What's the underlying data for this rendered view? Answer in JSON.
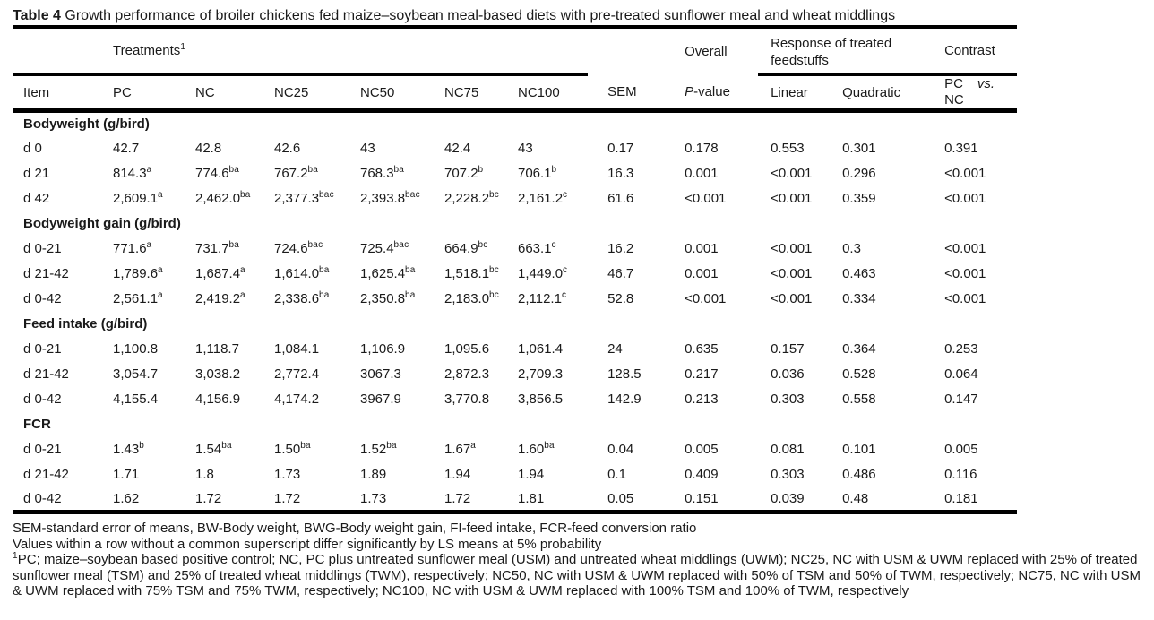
{
  "title": {
    "prefix": "Table 4",
    "text": " Growth performance of broiler chickens fed maize–soybean meal-based diets with pre-treated sunflower meal and wheat middlings"
  },
  "header": {
    "treatments_label": "Treatments",
    "treatments_sup": "1",
    "overall_label": "Overall",
    "response_label": "Response of treated feedstuffs",
    "contrast_label": "Contrast",
    "item": "Item",
    "treatments": [
      "PC",
      "NC",
      "NC25",
      "NC50",
      "NC75",
      "NC100"
    ],
    "sem": "SEM",
    "p_italic": "P",
    "p_rest": "-value",
    "linear": "Linear",
    "quadratic": "Quadratic",
    "contrast_pc": "PC",
    "contrast_vs": "vs.",
    "contrast_nc": "NC"
  },
  "sections": [
    {
      "label": "Bodyweight (g/bird)",
      "rows": [
        {
          "item": "d 0",
          "values": [
            {
              "v": "42.7",
              "sup": ""
            },
            {
              "v": "42.8",
              "sup": ""
            },
            {
              "v": "42.6",
              "sup": ""
            },
            {
              "v": "43",
              "sup": ""
            },
            {
              "v": "42.4",
              "sup": ""
            },
            {
              "v": "43",
              "sup": ""
            }
          ],
          "sem": "0.17",
          "p": "0.178",
          "linear": "0.553",
          "quadratic": "0.301",
          "contrast": "0.391"
        },
        {
          "item": "d 21",
          "values": [
            {
              "v": "814.3",
              "sup": "a"
            },
            {
              "v": "774.6",
              "sup": "ba"
            },
            {
              "v": "767.2",
              "sup": "ba"
            },
            {
              "v": "768.3",
              "sup": "ba"
            },
            {
              "v": "707.2",
              "sup": "b"
            },
            {
              "v": "706.1",
              "sup": "b"
            }
          ],
          "sem": "16.3",
          "p": "0.001",
          "linear": "<0.001",
          "quadratic": "0.296",
          "contrast": "<0.001"
        },
        {
          "item": "d 42",
          "values": [
            {
              "v": "2,609.1",
              "sup": "a"
            },
            {
              "v": "2,462.0",
              "sup": "ba"
            },
            {
              "v": "2,377.3",
              "sup": "bac"
            },
            {
              "v": "2,393.8",
              "sup": "bac"
            },
            {
              "v": "2,228.2",
              "sup": "bc"
            },
            {
              "v": "2,161.2",
              "sup": "c"
            }
          ],
          "sem": "61.6",
          "p": "<0.001",
          "linear": "<0.001",
          "quadratic": "0.359",
          "contrast": "<0.001"
        }
      ]
    },
    {
      "label": "Bodyweight gain (g/bird)",
      "rows": [
        {
          "item": "d 0-21",
          "values": [
            {
              "v": "771.6",
              "sup": "a"
            },
            {
              "v": "731.7",
              "sup": "ba"
            },
            {
              "v": "724.6",
              "sup": "bac"
            },
            {
              "v": "725.4",
              "sup": "bac"
            },
            {
              "v": "664.9",
              "sup": "bc"
            },
            {
              "v": "663.1",
              "sup": "c"
            }
          ],
          "sem": "16.2",
          "p": "0.001",
          "linear": "<0.001",
          "quadratic": "0.3",
          "contrast": "<0.001"
        },
        {
          "item": "d 21-42",
          "values": [
            {
              "v": "1,789.6",
              "sup": "a"
            },
            {
              "v": "1,687.4",
              "sup": "a"
            },
            {
              "v": "1,614.0",
              "sup": "ba"
            },
            {
              "v": "1,625.4",
              "sup": "ba"
            },
            {
              "v": "1,518.1",
              "sup": "bc"
            },
            {
              "v": "1,449.0",
              "sup": "c"
            }
          ],
          "sem": "46.7",
          "p": "0.001",
          "linear": "<0.001",
          "quadratic": "0.463",
          "contrast": "<0.001"
        },
        {
          "item": "d 0-42",
          "values": [
            {
              "v": "2,561.1",
              "sup": "a"
            },
            {
              "v": "2,419.2",
              "sup": "a"
            },
            {
              "v": "2,338.6",
              "sup": "ba"
            },
            {
              "v": "2,350.8",
              "sup": "ba"
            },
            {
              "v": "2,183.0",
              "sup": "bc"
            },
            {
              "v": "2,112.1",
              "sup": "c"
            }
          ],
          "sem": "52.8",
          "p": "<0.001",
          "linear": "<0.001",
          "quadratic": "0.334",
          "contrast": "<0.001"
        }
      ]
    },
    {
      "label": "Feed intake (g/bird)",
      "rows": [
        {
          "item": "d 0-21",
          "values": [
            {
              "v": "1,100.8",
              "sup": ""
            },
            {
              "v": "1,118.7",
              "sup": ""
            },
            {
              "v": "1,084.1",
              "sup": ""
            },
            {
              "v": "1,106.9",
              "sup": ""
            },
            {
              "v": "1,095.6",
              "sup": ""
            },
            {
              "v": "1,061.4",
              "sup": ""
            }
          ],
          "sem": "24",
          "p": "0.635",
          "linear": "0.157",
          "quadratic": "0.364",
          "contrast": "0.253"
        },
        {
          "item": "d 21-42",
          "values": [
            {
              "v": "3,054.7",
              "sup": ""
            },
            {
              "v": "3,038.2",
              "sup": ""
            },
            {
              "v": "2,772.4",
              "sup": ""
            },
            {
              "v": "3067.3",
              "sup": ""
            },
            {
              "v": "2,872.3",
              "sup": ""
            },
            {
              "v": "2,709.3",
              "sup": ""
            }
          ],
          "sem": "128.5",
          "p": "0.217",
          "linear": "0.036",
          "quadratic": "0.528",
          "contrast": "0.064"
        },
        {
          "item": "d 0-42",
          "values": [
            {
              "v": "4,155.4",
              "sup": ""
            },
            {
              "v": "4,156.9",
              "sup": ""
            },
            {
              "v": "4,174.2",
              "sup": ""
            },
            {
              "v": "3967.9",
              "sup": ""
            },
            {
              "v": "3,770.8",
              "sup": ""
            },
            {
              "v": "3,856.5",
              "sup": ""
            }
          ],
          "sem": "142.9",
          "p": "0.213",
          "linear": "0.303",
          "quadratic": "0.558",
          "contrast": "0.147"
        }
      ]
    },
    {
      "label": "FCR",
      "rows": [
        {
          "item": "d 0-21",
          "values": [
            {
              "v": "1.43",
              "sup": "b"
            },
            {
              "v": "1.54",
              "sup": "ba"
            },
            {
              "v": "1.50",
              "sup": "ba"
            },
            {
              "v": "1.52",
              "sup": "ba"
            },
            {
              "v": "1.67",
              "sup": "a"
            },
            {
              "v": "1.60",
              "sup": "ba"
            }
          ],
          "sem": "0.04",
          "p": "0.005",
          "linear": "0.081",
          "quadratic": "0.101",
          "contrast": "0.005"
        },
        {
          "item": "d 21-42",
          "values": [
            {
              "v": "1.71",
              "sup": ""
            },
            {
              "v": "1.8",
              "sup": ""
            },
            {
              "v": "1.73",
              "sup": ""
            },
            {
              "v": "1.89",
              "sup": ""
            },
            {
              "v": "1.94",
              "sup": ""
            },
            {
              "v": "1.94",
              "sup": ""
            }
          ],
          "sem": "0.1",
          "p": "0.409",
          "linear": "0.303",
          "quadratic": "0.486",
          "contrast": "0.116"
        },
        {
          "item": "d 0-42",
          "values": [
            {
              "v": "1.62",
              "sup": ""
            },
            {
              "v": "1.72",
              "sup": ""
            },
            {
              "v": "1.72",
              "sup": ""
            },
            {
              "v": "1.73",
              "sup": ""
            },
            {
              "v": "1.72",
              "sup": ""
            },
            {
              "v": "1.81",
              "sup": ""
            }
          ],
          "sem": "0.05",
          "p": "0.151",
          "linear": "0.039",
          "quadratic": "0.48",
          "contrast": "0.181"
        }
      ]
    }
  ],
  "footnotes": {
    "line1": "SEM-standard error of means, BW-Body weight, BWG-Body weight gain, FI-feed intake, FCR-feed conversion ratio",
    "line2": "Values within a row without a common superscript differ significantly by LS means at 5% probability",
    "line3_sup": "1",
    "line3": "PC; maize–soybean based positive control; NC, PC plus untreated sunflower meal (USM) and untreated wheat middlings (UWM); NC25, NC with USM & UWM replaced with 25% of treated sunflower meal (TSM) and 25% of treated wheat middlings (TWM), respectively; NC50, NC with USM & UWM replaced with 50% of TSM and 50% of TWM, respectively; NC75, NC with USM & UWM replaced with 75% TSM and 75% TWM, respectively; NC100, NC with USM & UWM replaced with 100% TSM and 100% of TWM, respectively"
  }
}
